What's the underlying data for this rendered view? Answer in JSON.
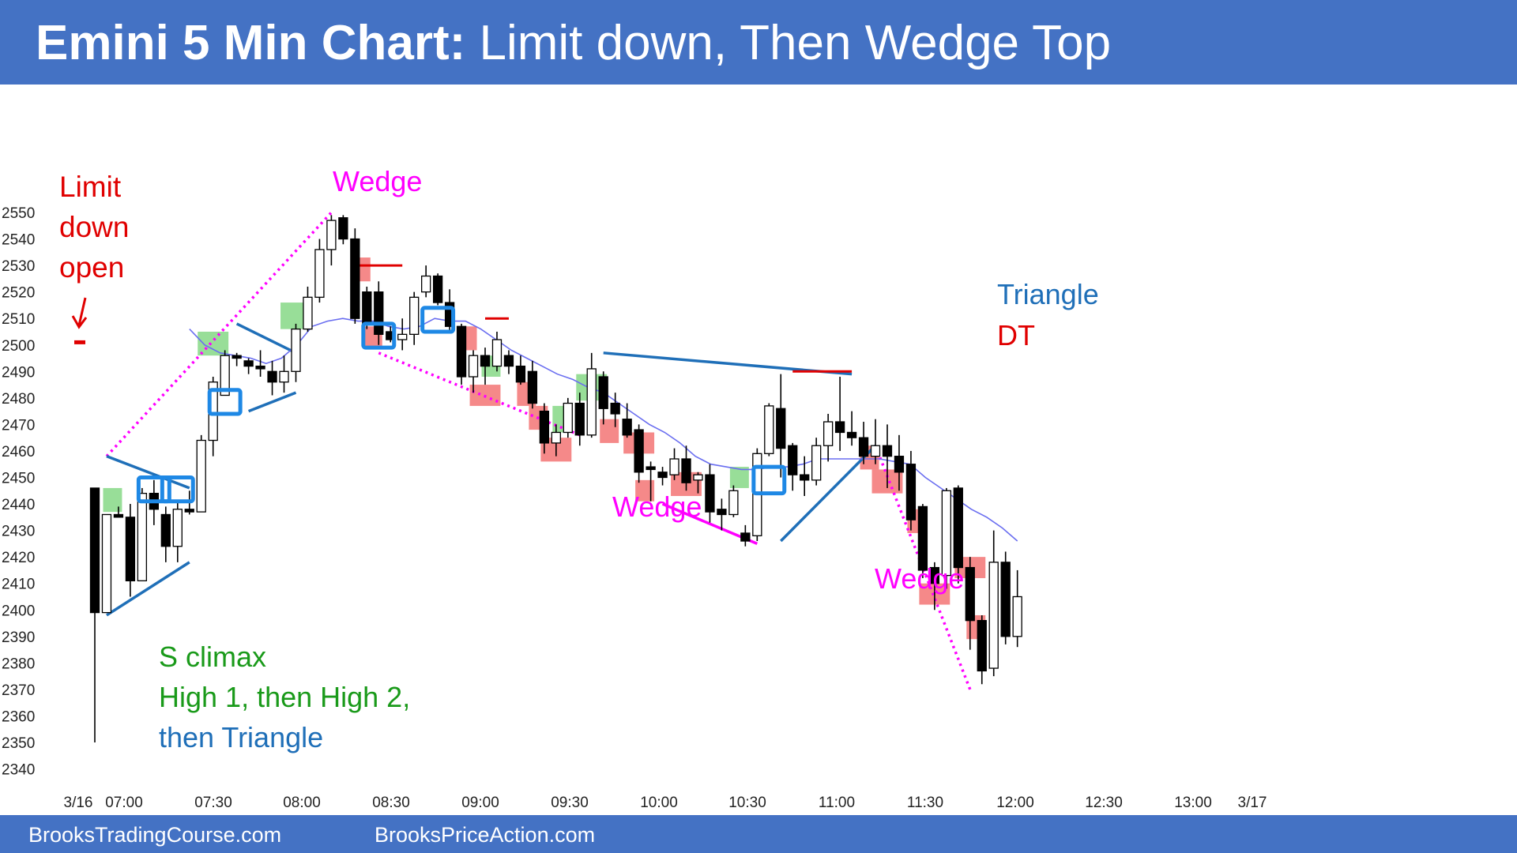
{
  "title": {
    "bold": "Emini 5 Min Chart:",
    "rest": " Limit down, Then Wedge Top"
  },
  "footer": {
    "left": "BrooksTradingCourse.com",
    "right": "BrooksPriceAction.com"
  },
  "colors": {
    "bar": "#4472c4",
    "bull_body": "#ffffff",
    "bear_body": "#000000",
    "ema": "#6a6ef0",
    "red_label": "#e00000",
    "magenta": "#ff00ff",
    "green_label": "#1a9a1a",
    "blue_label": "#1f6fb8",
    "green_box": "#7ed67e",
    "red_box": "#f26b6b",
    "blue_box": "#1e88e5"
  },
  "annotations": {
    "limit_down_open": [
      "Limit",
      "down",
      "open"
    ],
    "wedge_top": "Wedge",
    "wedge_mid": "Wedge",
    "wedge_low": "Wedge",
    "triangle": "Triangle",
    "dt": "DT",
    "s_climax": "S climax",
    "high12": "High 1, then High 2,",
    "then_triangle": "then Triangle"
  },
  "chart_data": {
    "type": "candlestick",
    "title": "Emini 5 Min Chart: Limit down, Then Wedge Top",
    "ylim": [
      2340,
      2552
    ],
    "yticks": [
      2550,
      2540,
      2530,
      2520,
      2510,
      2500,
      2490,
      2480,
      2470,
      2460,
      2450,
      2440,
      2430,
      2420,
      2410,
      2400,
      2390,
      2380,
      2370,
      2360,
      2350,
      2340
    ],
    "xticks": [
      "3/16",
      "07:00",
      "07:30",
      "08:00",
      "08:30",
      "09:00",
      "09:30",
      "10:00",
      "10:30",
      "11:00",
      "11:30",
      "12:00",
      "12:30",
      "13:00",
      "3/17"
    ],
    "limit_down_open_price": 2501,
    "candles": [
      {
        "o": 2446,
        "h": 2446,
        "l": 2350,
        "c": 2399
      },
      {
        "o": 2399,
        "h": 2436,
        "l": 2399,
        "c": 2436
      },
      {
        "o": 2436,
        "h": 2439,
        "l": 2435,
        "c": 2435
      },
      {
        "o": 2435,
        "h": 2440,
        "l": 2405,
        "c": 2411
      },
      {
        "o": 2411,
        "h": 2446,
        "l": 2411,
        "c": 2444
      },
      {
        "o": 2444,
        "h": 2449,
        "l": 2432,
        "c": 2438
      },
      {
        "o": 2436,
        "h": 2439,
        "l": 2418,
        "c": 2424
      },
      {
        "o": 2424,
        "h": 2441,
        "l": 2418,
        "c": 2438
      },
      {
        "o": 2438,
        "h": 2445,
        "l": 2436,
        "c": 2437
      },
      {
        "o": 2437,
        "h": 2466,
        "l": 2437,
        "c": 2464
      },
      {
        "o": 2464,
        "h": 2488,
        "l": 2458,
        "c": 2486
      },
      {
        "o": 2481,
        "h": 2498,
        "l": 2481,
        "c": 2496
      },
      {
        "o": 2496,
        "h": 2497,
        "l": 2492,
        "c": 2495
      },
      {
        "o": 2494,
        "h": 2495,
        "l": 2489,
        "c": 2492
      },
      {
        "o": 2492,
        "h": 2498,
        "l": 2488,
        "c": 2491
      },
      {
        "o": 2490,
        "h": 2494,
        "l": 2481,
        "c": 2486
      },
      {
        "o": 2486,
        "h": 2496,
        "l": 2482,
        "c": 2490
      },
      {
        "o": 2490,
        "h": 2508,
        "l": 2486,
        "c": 2506
      },
      {
        "o": 2506,
        "h": 2522,
        "l": 2505,
        "c": 2518
      },
      {
        "o": 2518,
        "h": 2540,
        "l": 2516,
        "c": 2536
      },
      {
        "o": 2536,
        "h": 2549,
        "l": 2530,
        "c": 2547
      },
      {
        "o": 2548,
        "h": 2549,
        "l": 2538,
        "c": 2540
      },
      {
        "o": 2540,
        "h": 2544,
        "l": 2508,
        "c": 2510
      },
      {
        "o": 2520,
        "h": 2522,
        "l": 2506,
        "c": 2508
      },
      {
        "o": 2520,
        "h": 2524,
        "l": 2500,
        "c": 2504
      },
      {
        "o": 2505,
        "h": 2507,
        "l": 2501,
        "c": 2502
      },
      {
        "o": 2502,
        "h": 2510,
        "l": 2498,
        "c": 2504
      },
      {
        "o": 2504,
        "h": 2520,
        "l": 2500,
        "c": 2518
      },
      {
        "o": 2520,
        "h": 2530,
        "l": 2518,
        "c": 2526
      },
      {
        "o": 2526,
        "h": 2527,
        "l": 2515,
        "c": 2516
      },
      {
        "o": 2516,
        "h": 2521,
        "l": 2505,
        "c": 2507
      },
      {
        "o": 2507,
        "h": 2508,
        "l": 2485,
        "c": 2488
      },
      {
        "o": 2488,
        "h": 2498,
        "l": 2482,
        "c": 2496
      },
      {
        "o": 2496,
        "h": 2499,
        "l": 2485,
        "c": 2492
      },
      {
        "o": 2492,
        "h": 2505,
        "l": 2490,
        "c": 2502
      },
      {
        "o": 2496,
        "h": 2498,
        "l": 2489,
        "c": 2492
      },
      {
        "o": 2492,
        "h": 2496,
        "l": 2485,
        "c": 2486
      },
      {
        "o": 2490,
        "h": 2494,
        "l": 2476,
        "c": 2478
      },
      {
        "o": 2475,
        "h": 2478,
        "l": 2459,
        "c": 2463
      },
      {
        "o": 2463,
        "h": 2470,
        "l": 2458,
        "c": 2467
      },
      {
        "o": 2467,
        "h": 2480,
        "l": 2465,
        "c": 2478
      },
      {
        "o": 2478,
        "h": 2482,
        "l": 2462,
        "c": 2466
      },
      {
        "o": 2466,
        "h": 2497,
        "l": 2465,
        "c": 2491
      },
      {
        "o": 2488,
        "h": 2490,
        "l": 2470,
        "c": 2476
      },
      {
        "o": 2478,
        "h": 2482,
        "l": 2469,
        "c": 2474
      },
      {
        "o": 2472,
        "h": 2478,
        "l": 2465,
        "c": 2466
      },
      {
        "o": 2468,
        "h": 2470,
        "l": 2448,
        "c": 2452
      },
      {
        "o": 2454,
        "h": 2456,
        "l": 2441,
        "c": 2453
      },
      {
        "o": 2452,
        "h": 2454,
        "l": 2447,
        "c": 2450
      },
      {
        "o": 2451,
        "h": 2461,
        "l": 2449,
        "c": 2457
      },
      {
        "o": 2457,
        "h": 2462,
        "l": 2445,
        "c": 2448
      },
      {
        "o": 2449,
        "h": 2452,
        "l": 2444,
        "c": 2451
      },
      {
        "o": 2451,
        "h": 2455,
        "l": 2433,
        "c": 2437
      },
      {
        "o": 2438,
        "h": 2442,
        "l": 2430,
        "c": 2436
      },
      {
        "o": 2436,
        "h": 2447,
        "l": 2435,
        "c": 2445
      },
      {
        "o": 2429,
        "h": 2432,
        "l": 2424,
        "c": 2426
      },
      {
        "o": 2428,
        "h": 2461,
        "l": 2426,
        "c": 2459
      },
      {
        "o": 2459,
        "h": 2478,
        "l": 2458,
        "c": 2477
      },
      {
        "o": 2476,
        "h": 2489,
        "l": 2450,
        "c": 2461
      },
      {
        "o": 2462,
        "h": 2463,
        "l": 2445,
        "c": 2451
      },
      {
        "o": 2451,
        "h": 2458,
        "l": 2443,
        "c": 2449
      },
      {
        "o": 2449,
        "h": 2465,
        "l": 2447,
        "c": 2462
      },
      {
        "o": 2462,
        "h": 2474,
        "l": 2456,
        "c": 2471
      },
      {
        "o": 2471,
        "h": 2488,
        "l": 2460,
        "c": 2467
      },
      {
        "o": 2467,
        "h": 2475,
        "l": 2462,
        "c": 2465
      },
      {
        "o": 2465,
        "h": 2471,
        "l": 2455,
        "c": 2458
      },
      {
        "o": 2458,
        "h": 2472,
        "l": 2455,
        "c": 2462
      },
      {
        "o": 2462,
        "h": 2470,
        "l": 2446,
        "c": 2458
      },
      {
        "o": 2458,
        "h": 2466,
        "l": 2445,
        "c": 2452
      },
      {
        "o": 2455,
        "h": 2460,
        "l": 2430,
        "c": 2434
      },
      {
        "o": 2439,
        "h": 2440,
        "l": 2412,
        "c": 2415
      },
      {
        "o": 2416,
        "h": 2418,
        "l": 2400,
        "c": 2410
      },
      {
        "o": 2413,
        "h": 2446,
        "l": 2408,
        "c": 2445
      },
      {
        "o": 2446,
        "h": 2447,
        "l": 2410,
        "c": 2416
      },
      {
        "o": 2416,
        "h": 2420,
        "l": 2385,
        "c": 2396
      },
      {
        "o": 2396,
        "h": 2398,
        "l": 2372,
        "c": 2377
      },
      {
        "o": 2378,
        "h": 2430,
        "l": 2375,
        "c": 2418
      },
      {
        "o": 2418,
        "h": 2422,
        "l": 2387,
        "c": 2390
      },
      {
        "o": 2390,
        "h": 2415,
        "l": 2386,
        "c": 2405
      }
    ],
    "ema": [
      2506,
      2500,
      2497,
      2496,
      2495,
      2493,
      2495,
      2500,
      2507,
      2509,
      2510,
      2509,
      2509,
      2507,
      2506,
      2507,
      2510,
      2509,
      2509,
      2506,
      2502,
      2498,
      2495,
      2492,
      2489,
      2487,
      2484,
      2482,
      2478,
      2474,
      2470,
      2467,
      2463,
      2458,
      2455,
      2454,
      2453,
      2453,
      2454,
      2454,
      2455,
      2457,
      2457,
      2457,
      2457,
      2457,
      2456,
      2455,
      2450,
      2446,
      2442,
      2438,
      2435,
      2431,
      2426
    ],
    "lines": [
      {
        "name": "wedge-top",
        "style": "dotted",
        "color": "magenta",
        "from": [
          1,
          2458
        ],
        "to": [
          20,
          2550
        ]
      },
      {
        "name": "wedge-top-down",
        "style": "dotted",
        "color": "magenta",
        "from": [
          24,
          2497
        ],
        "to": [
          41,
          2466
        ]
      },
      {
        "name": "triangle-top-1",
        "style": "solid",
        "color": "blue",
        "from": [
          1,
          2458
        ],
        "to": [
          8,
          2446
        ]
      },
      {
        "name": "triangle-bot-1",
        "style": "solid",
        "color": "blue",
        "from": [
          1,
          2398
        ],
        "to": [
          8,
          2418
        ]
      },
      {
        "name": "triangle-top-2",
        "style": "solid",
        "color": "blue",
        "from": [
          12,
          2508
        ],
        "to": [
          17,
          2497
        ]
      },
      {
        "name": "triangle-bot-2",
        "style": "solid",
        "color": "blue",
        "from": [
          13,
          2475
        ],
        "to": [
          17,
          2482
        ]
      },
      {
        "name": "triangle-top-big",
        "style": "solid",
        "color": "blue",
        "from": [
          43,
          2497
        ],
        "to": [
          64,
          2489
        ]
      },
      {
        "name": "triangle-bot-big",
        "style": "solid",
        "color": "blue",
        "from": [
          58,
          2426
        ],
        "to": [
          66,
          2462
        ]
      },
      {
        "name": "wedge-low",
        "style": "solid",
        "color": "magenta",
        "from": [
          48,
          2440
        ],
        "to": [
          56,
          2425
        ]
      },
      {
        "name": "wedge-bottom-down",
        "style": "dotted",
        "color": "magenta",
        "from": [
          66,
          2462
        ],
        "to": [
          74,
          2370
        ]
      },
      {
        "name": "dt-level",
        "style": "solid",
        "color": "red",
        "from": [
          59,
          2490
        ],
        "to": [
          64,
          2490
        ]
      },
      {
        "name": "lower-high-1",
        "style": "solid",
        "color": "red",
        "from": [
          22,
          2530
        ],
        "to": [
          26,
          2530
        ]
      },
      {
        "name": "lower-high-2",
        "style": "solid",
        "color": "red",
        "from": [
          33,
          2510
        ],
        "to": [
          35,
          2510
        ]
      }
    ],
    "boxes": [
      {
        "kind": "green",
        "i0": 0.7,
        "i1": 2.3,
        "top": 2446,
        "bot": 2437
      },
      {
        "kind": "green",
        "i0": 8.7,
        "i1": 11.3,
        "top": 2505,
        "bot": 2496
      },
      {
        "kind": "green",
        "i0": 15.7,
        "i1": 18.3,
        "top": 2516,
        "bot": 2506
      },
      {
        "kind": "green",
        "i0": 32.7,
        "i1": 34.3,
        "top": 2496,
        "bot": 2488
      },
      {
        "kind": "green",
        "i0": 38.7,
        "i1": 40.3,
        "top": 2477,
        "bot": 2467
      },
      {
        "kind": "green",
        "i0": 40.7,
        "i1": 43.3,
        "top": 2489,
        "bot": 2479
      },
      {
        "kind": "green",
        "i0": 53.7,
        "i1": 55.3,
        "top": 2454,
        "bot": 2446
      },
      {
        "kind": "red",
        "i0": 21.7,
        "i1": 23.3,
        "top": 2533,
        "bot": 2524
      },
      {
        "kind": "red",
        "i0": 22.7,
        "i1": 24.3,
        "top": 2507,
        "bot": 2499
      },
      {
        "kind": "red",
        "i0": 30.7,
        "i1": 32.3,
        "top": 2507,
        "bot": 2498
      },
      {
        "kind": "red",
        "i0": 31.7,
        "i1": 34.3,
        "top": 2485,
        "bot": 2477
      },
      {
        "kind": "red",
        "i0": 35.7,
        "i1": 37.3,
        "top": 2486,
        "bot": 2477
      },
      {
        "kind": "red",
        "i0": 36.7,
        "i1": 38.3,
        "top": 2477,
        "bot": 2468
      },
      {
        "kind": "red",
        "i0": 37.7,
        "i1": 40.3,
        "top": 2465,
        "bot": 2456
      },
      {
        "kind": "red",
        "i0": 42.7,
        "i1": 44.3,
        "top": 2472,
        "bot": 2463
      },
      {
        "kind": "red",
        "i0": 44.7,
        "i1": 47.3,
        "top": 2467,
        "bot": 2459
      },
      {
        "kind": "red",
        "i0": 45.7,
        "i1": 47.3,
        "top": 2449,
        "bot": 2441
      },
      {
        "kind": "red",
        "i0": 48.7,
        "i1": 51.3,
        "top": 2452,
        "bot": 2443
      },
      {
        "kind": "red",
        "i0": 64.7,
        "i1": 66.3,
        "top": 2462,
        "bot": 2453
      },
      {
        "kind": "red",
        "i0": 65.7,
        "i1": 68.3,
        "top": 2453,
        "bot": 2444
      },
      {
        "kind": "red",
        "i0": 68.7,
        "i1": 70.3,
        "top": 2438,
        "bot": 2429
      },
      {
        "kind": "red",
        "i0": 69.7,
        "i1": 72.3,
        "top": 2410,
        "bot": 2402
      },
      {
        "kind": "red",
        "i0": 72.7,
        "i1": 75.3,
        "top": 2420,
        "bot": 2412
      },
      {
        "kind": "red",
        "i0": 73.7,
        "i1": 75.3,
        "top": 2398,
        "bot": 2389
      }
    ],
    "blue_boxes": [
      {
        "i0": 3.7,
        "i1": 6.3,
        "top": 2450,
        "bot": 2441
      },
      {
        "i0": 5.7,
        "i1": 8.3,
        "top": 2450,
        "bot": 2441
      },
      {
        "i0": 9.7,
        "i1": 12.3,
        "top": 2483,
        "bot": 2474
      },
      {
        "i0": 22.7,
        "i1": 25.3,
        "top": 2508,
        "bot": 2499
      },
      {
        "i0": 27.7,
        "i1": 30.3,
        "top": 2514,
        "bot": 2505
      },
      {
        "i0": 55.7,
        "i1": 58.3,
        "top": 2454,
        "bot": 2444
      }
    ]
  }
}
